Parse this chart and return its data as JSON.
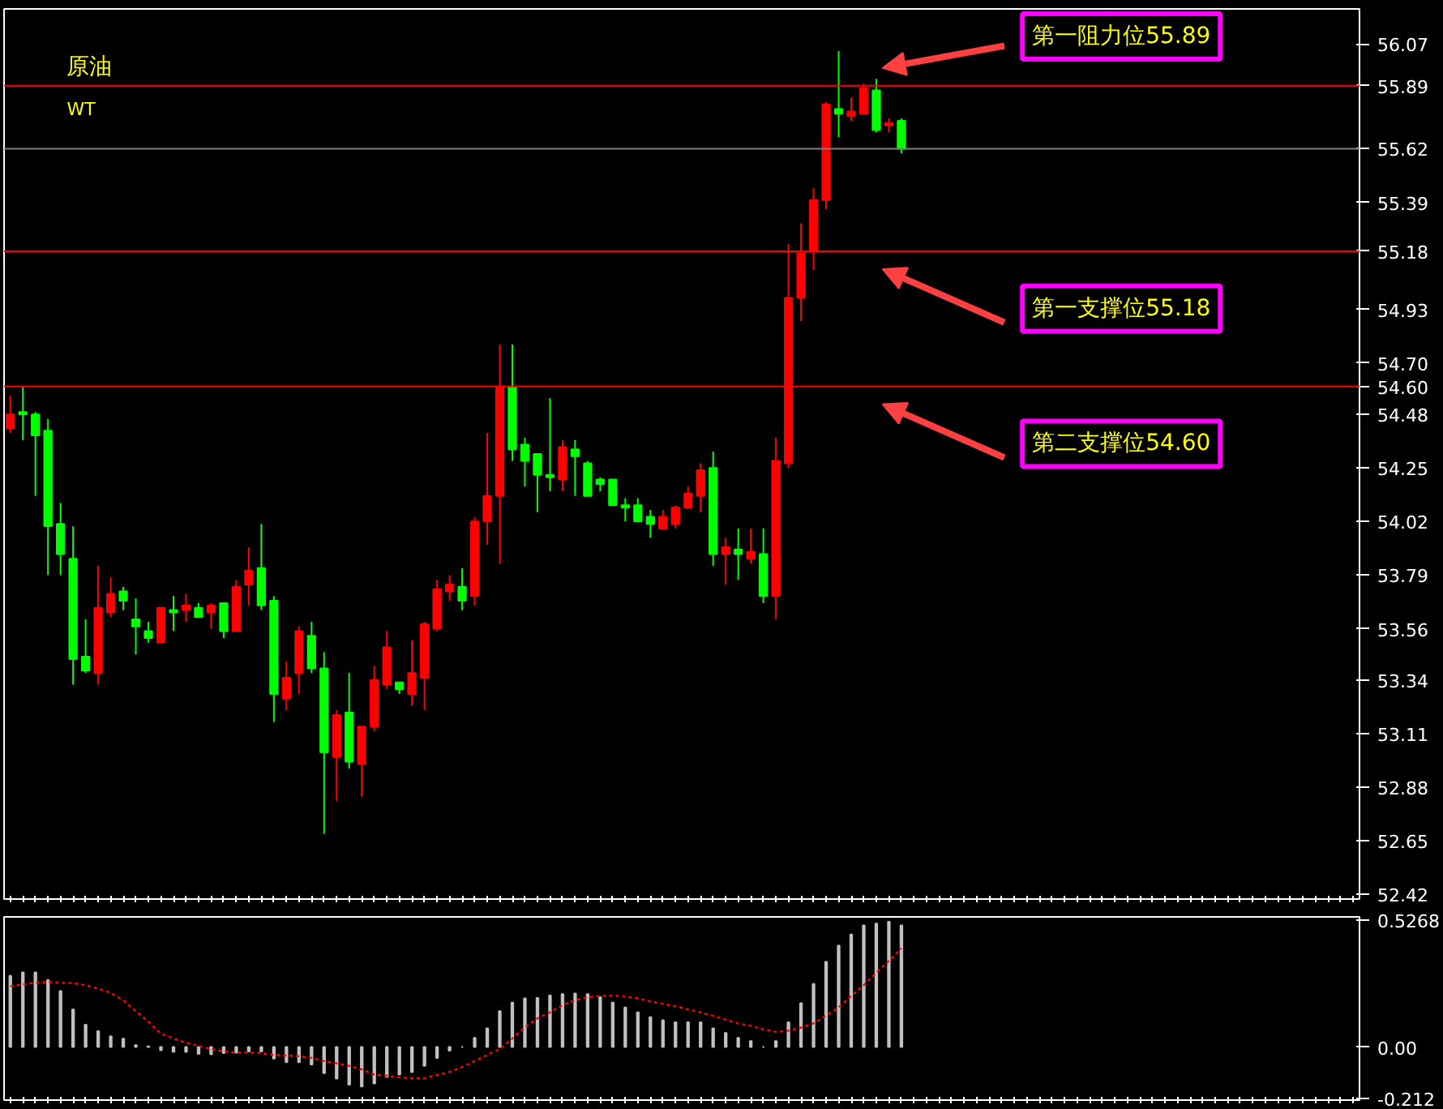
{
  "chart_data": [
    {
      "type": "candlestick",
      "categories": [
        null,
        null,
        null,
        null,
        null,
        null,
        null,
        null,
        null,
        null,
        null,
        null,
        null,
        null,
        null,
        null,
        null,
        null,
        null,
        null,
        null,
        null,
        null,
        null,
        null,
        null,
        null,
        null,
        null,
        null,
        null,
        null,
        null,
        null,
        null,
        null,
        null,
        null,
        null,
        null,
        null,
        null,
        null,
        null,
        null,
        null,
        null,
        null,
        null,
        null,
        null,
        null,
        null,
        null,
        null,
        null,
        null,
        null,
        null,
        null,
        null,
        null,
        null,
        null,
        null,
        null,
        null,
        null,
        null,
        null,
        null,
        null,
        null,
        null,
        null,
        null,
        null,
        null,
        null,
        null,
        null,
        null,
        null,
        null,
        null,
        null,
        null,
        null,
        null,
        null,
        null,
        null,
        null,
        null,
        null,
        null,
        null,
        null,
        null,
        null,
        null,
        null,
        null,
        null,
        null,
        null,
        null,
        null
      ],
      "ohlc": [
        [
          54.42,
          54.56,
          54.4,
          54.48
        ],
        [
          54.49,
          54.6,
          54.37,
          54.48
        ],
        [
          54.48,
          54.49,
          54.13,
          54.39
        ],
        [
          54.41,
          54.46,
          53.79,
          54.0
        ],
        [
          54.01,
          54.1,
          53.79,
          53.88
        ],
        [
          53.86,
          54.0,
          53.32,
          53.43
        ],
        [
          53.44,
          53.6,
          53.37,
          53.38
        ],
        [
          53.37,
          53.83,
          53.32,
          53.65
        ],
        [
          53.63,
          53.78,
          53.61,
          53.71
        ],
        [
          53.72,
          53.74,
          53.64,
          53.68
        ],
        [
          53.6,
          53.69,
          53.45,
          53.57
        ],
        [
          53.55,
          53.59,
          53.5,
          53.52
        ],
        [
          53.5,
          53.65,
          53.5,
          53.65
        ],
        [
          53.64,
          53.7,
          53.55,
          53.63
        ],
        [
          53.64,
          53.71,
          53.59,
          53.66
        ],
        [
          53.65,
          53.67,
          53.61,
          53.61
        ],
        [
          53.63,
          53.67,
          53.56,
          53.66
        ],
        [
          53.67,
          53.67,
          53.52,
          53.55
        ],
        [
          53.55,
          53.77,
          53.55,
          53.74
        ],
        [
          53.75,
          53.91,
          53.66,
          53.81
        ],
        [
          53.82,
          54.01,
          53.64,
          53.66
        ],
        [
          53.68,
          53.7,
          53.16,
          53.28
        ],
        [
          53.26,
          53.42,
          53.21,
          53.35
        ],
        [
          53.37,
          53.57,
          53.28,
          53.55
        ],
        [
          53.53,
          53.59,
          53.37,
          53.39
        ],
        [
          53.39,
          53.46,
          52.68,
          53.03
        ],
        [
          53.01,
          53.21,
          52.82,
          53.19
        ],
        [
          53.2,
          53.37,
          52.96,
          52.99
        ],
        [
          52.98,
          53.14,
          52.84,
          53.14
        ],
        [
          53.14,
          53.4,
          53.12,
          53.34
        ],
        [
          53.32,
          53.55,
          53.3,
          53.48
        ],
        [
          53.33,
          53.33,
          53.28,
          53.3
        ],
        [
          53.28,
          53.51,
          53.23,
          53.37
        ],
        [
          53.35,
          53.59,
          53.21,
          53.58
        ],
        [
          53.56,
          53.77,
          53.55,
          53.73
        ],
        [
          53.72,
          53.79,
          53.68,
          53.75
        ],
        [
          53.74,
          53.82,
          53.64,
          53.68
        ],
        [
          53.7,
          54.04,
          53.66,
          54.02
        ],
        [
          54.02,
          54.4,
          53.92,
          54.13
        ],
        [
          54.13,
          54.78,
          53.84,
          54.6
        ],
        [
          54.6,
          54.78,
          54.28,
          54.33
        ],
        [
          54.35,
          54.38,
          54.17,
          54.28
        ],
        [
          54.31,
          54.31,
          54.06,
          54.22
        ],
        [
          54.22,
          54.55,
          54.15,
          54.21
        ],
        [
          54.2,
          54.37,
          54.15,
          54.34
        ],
        [
          54.33,
          54.37,
          54.13,
          54.3
        ],
        [
          54.27,
          54.28,
          54.13,
          54.13
        ],
        [
          54.2,
          54.21,
          54.15,
          54.18
        ],
        [
          54.2,
          54.2,
          54.09,
          54.09
        ],
        [
          54.09,
          54.12,
          54.02,
          54.08
        ],
        [
          54.09,
          54.12,
          54.02,
          54.02
        ],
        [
          54.04,
          54.07,
          53.95,
          54.01
        ],
        [
          53.99,
          54.07,
          53.99,
          54.04
        ],
        [
          54.01,
          54.09,
          53.99,
          54.08
        ],
        [
          54.08,
          54.17,
          54.08,
          54.14
        ],
        [
          54.13,
          54.27,
          54.06,
          54.24
        ],
        [
          54.25,
          54.32,
          53.83,
          53.88
        ],
        [
          53.88,
          53.95,
          53.75,
          53.91
        ],
        [
          53.9,
          53.99,
          53.77,
          53.88
        ],
        [
          53.86,
          53.99,
          53.84,
          53.89
        ],
        [
          53.88,
          53.99,
          53.67,
          53.7
        ],
        [
          53.7,
          54.38,
          53.6,
          54.28
        ],
        [
          54.27,
          55.21,
          54.25,
          54.98
        ],
        [
          54.98,
          55.3,
          54.88,
          55.17
        ],
        [
          55.18,
          55.45,
          55.1,
          55.4
        ],
        [
          55.4,
          55.82,
          55.36,
          55.81
        ],
        [
          55.79,
          56.04,
          55.67,
          55.77
        ],
        [
          55.76,
          55.84,
          55.74,
          55.78
        ],
        [
          55.77,
          55.9,
          55.77,
          55.88
        ],
        [
          55.87,
          55.92,
          55.69,
          55.7
        ],
        [
          55.72,
          55.75,
          55.69,
          55.73
        ],
        [
          55.74,
          55.75,
          55.6,
          55.62
        ],
        null,
        null,
        null,
        null,
        null,
        null,
        null,
        null,
        null,
        null,
        null,
        null,
        null,
        null,
        null,
        null,
        null,
        null,
        null,
        null,
        null,
        null,
        null,
        null,
        null,
        null,
        null,
        null,
        null,
        null,
        null,
        null,
        null,
        null,
        null,
        null
      ],
      "colors": [
        "#ff0000",
        "#00ff00",
        "#00ff00",
        "#00ff00",
        "#00ff00",
        "#00ff00",
        "#00ff00",
        "#ff0000",
        "#ff0000",
        "#00ff00",
        "#00ff00",
        "#00ff00",
        "#ff0000",
        "#00ff00",
        "#ff0000",
        "#00ff00",
        "#ff0000",
        "#00ff00",
        "#ff0000",
        "#ff0000",
        "#00ff00",
        "#00ff00",
        "#ff0000",
        "#ff0000",
        "#00ff00",
        "#00ff00",
        "#ff0000",
        "#00ff00",
        "#ff0000",
        "#ff0000",
        "#ff0000",
        "#00ff00",
        "#ff0000",
        "#ff0000",
        "#ff0000",
        "#ff0000",
        "#00ff00",
        "#ff0000",
        "#ff0000",
        "#ff0000",
        "#00ff00",
        "#00ff00",
        "#00ff00",
        "#00ff00",
        "#ff0000",
        "#00ff00",
        "#00ff00",
        "#00ff00",
        "#00ff00",
        "#00ff00",
        "#00ff00",
        "#00ff00",
        "#ff0000",
        "#ff0000",
        "#ff0000",
        "#ff0000",
        "#00ff00",
        "#ff0000",
        "#00ff00",
        "#ff0000",
        "#00ff00",
        "#ff0000",
        "#ff0000",
        "#ff0000",
        "#ff0000",
        "#ff0000",
        "#00ff00",
        "#ff0000",
        "#ff0000",
        "#00ff00",
        "#ff0000",
        "#00ff00",
        null,
        null,
        null,
        null,
        null,
        null,
        null,
        null,
        null,
        null,
        null,
        null,
        null,
        null,
        null,
        null,
        null,
        null,
        null,
        null,
        null,
        null,
        null,
        null,
        null,
        null,
        null,
        null,
        null,
        null,
        null,
        null,
        null,
        null,
        null,
        null
      ],
      "ylim": [
        52.4,
        56.22
      ],
      "yticks": [
        56.07,
        55.39,
        54.93,
        {
          "value": 54.7,
          "label": "54.70"
        },
        54.48,
        54.25,
        54.02,
        53.79,
        53.56,
        53.34,
        53.11,
        52.88,
        52.65,
        52.42
      ],
      "tick_labels": "y",
      "ref_lines": [
        {
          "axis": "y",
          "value": 55.89,
          "label": "55.89",
          "color": "#ff0000"
        },
        {
          "axis": "y",
          "value": 55.62,
          "label": "55.62",
          "color": "#808080"
        },
        {
          "axis": "y",
          "value": 55.18,
          "label": "55.18",
          "color": "#ff0000"
        },
        {
          "axis": "y",
          "value": 54.6,
          "label": "54.60",
          "color": "#ff0000"
        }
      ],
      "annotations": [
        "原油",
        "WT",
        {
          "text": "第一阻力位55.89",
          "y": 55.89
        },
        {
          "text": "第一支撑位55.18",
          "y": 55.18
        },
        {
          "text": "第二支撑位54.60",
          "y": 54.6
        }
      ]
    },
    {
      "type": "bar",
      "categories": [
        null,
        null,
        null,
        null,
        null,
        null,
        null,
        null,
        null,
        null,
        null,
        null,
        null,
        null,
        null,
        null,
        null,
        null,
        null,
        null,
        null,
        null,
        null,
        null,
        null,
        null,
        null,
        null,
        null,
        null,
        null,
        null,
        null,
        null,
        null,
        null,
        null,
        null,
        null,
        null,
        null,
        null,
        null,
        null,
        null,
        null,
        null,
        null,
        null,
        null,
        null,
        null,
        null,
        null,
        null,
        null,
        null,
        null,
        null,
        null,
        null,
        null,
        null,
        null,
        null,
        null,
        null,
        null,
        null,
        null,
        null,
        null,
        null,
        null,
        null,
        null,
        null,
        null,
        null,
        null,
        null,
        null,
        null,
        null,
        null,
        null,
        null,
        null,
        null,
        null,
        null,
        null,
        null,
        null,
        null,
        null,
        null,
        null,
        null,
        null,
        null,
        null,
        null,
        null,
        null,
        null,
        null,
        null
      ],
      "ylim": [
        -0.22,
        0.54
      ],
      "yticks": [
        0.5268,
        {
          "value": 0,
          "label": "0.00"
        },
        -0.212
      ],
      "tick_labels": "y",
      "series": [
        {
          "type": "bar",
          "color": "#c0c0c0",
          "values": [
            0.295,
            0.31,
            0.31,
            0.278,
            0.232,
            0.156,
            0.093,
            0.066,
            0.045,
            0.035,
            0.008,
            0.003,
            -0.013,
            -0.02,
            -0.02,
            -0.028,
            -0.03,
            -0.025,
            -0.023,
            -0.018,
            -0.018,
            -0.048,
            -0.063,
            -0.063,
            -0.073,
            -0.108,
            -0.131,
            -0.156,
            -0.164,
            -0.151,
            -0.124,
            -0.114,
            -0.104,
            -0.078,
            -0.045,
            -0.015,
            0.0,
            0.038,
            0.078,
            0.149,
            0.184,
            0.202,
            0.204,
            0.214,
            0.22,
            0.222,
            0.22,
            0.207,
            0.184,
            0.164,
            0.144,
            0.124,
            0.111,
            0.103,
            0.103,
            0.103,
            0.078,
            0.058,
            0.038,
            0.025,
            0.0,
            0.025,
            0.103,
            0.182,
            0.262,
            0.353,
            0.421,
            0.467,
            0.505,
            0.512,
            0.52,
            0.505,
            null,
            null,
            null,
            null,
            null,
            null,
            null,
            null,
            null,
            null,
            null,
            null,
            null,
            null,
            null,
            null,
            null,
            null,
            null,
            null,
            null,
            null,
            null,
            null,
            null,
            null,
            null,
            null,
            null,
            null,
            null,
            null,
            null,
            null,
            null,
            null
          ]
        },
        {
          "type": "line",
          "color": "#ff0000",
          "line_style": "dotted",
          "values": [
            0.252,
            0.26,
            0.267,
            0.27,
            0.267,
            0.265,
            0.257,
            0.242,
            0.225,
            0.194,
            0.149,
            0.106,
            0.056,
            0.035,
            0.018,
            0.005,
            -0.008,
            -0.018,
            -0.023,
            -0.023,
            -0.025,
            -0.033,
            -0.035,
            -0.038,
            -0.045,
            -0.058,
            -0.068,
            -0.078,
            -0.093,
            -0.114,
            -0.119,
            -0.126,
            -0.129,
            -0.129,
            -0.116,
            -0.103,
            -0.083,
            -0.058,
            -0.033,
            -0.008,
            0.035,
            0.081,
            0.119,
            0.144,
            0.174,
            0.194,
            0.207,
            0.212,
            0.214,
            0.209,
            0.202,
            0.189,
            0.179,
            0.169,
            0.156,
            0.144,
            0.129,
            0.114,
            0.098,
            0.088,
            0.073,
            0.063,
            0.068,
            0.081,
            0.098,
            0.131,
            0.164,
            0.212,
            0.257,
            0.308,
            0.358,
            0.409,
            null,
            null,
            null,
            null,
            null,
            null,
            null,
            null,
            null,
            null,
            null,
            null,
            null,
            null,
            null,
            null,
            null,
            null,
            null,
            null,
            null,
            null,
            null,
            null,
            null,
            null,
            null,
            null,
            null,
            null,
            null,
            null,
            null,
            null,
            null,
            null
          ]
        }
      ]
    }
  ]
}
